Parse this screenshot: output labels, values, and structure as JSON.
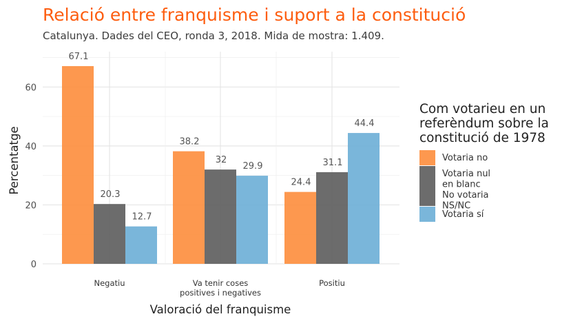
{
  "chart_data": {
    "type": "bar",
    "title": "Relació entre franquisme i suport a la constitució",
    "subtitle": "Catalunya. Dades del CEO, ronda 3, 2018. Mida de mostra: 1.409.",
    "xlabel": "Valoració del franquisme",
    "ylabel": "Percentatge",
    "ylim": [
      0,
      72
    ],
    "yticks": [
      0,
      20,
      40,
      60
    ],
    "grid": true,
    "categories": [
      "Negatiu",
      "Va tenir coses\npositives i negatives",
      "Positiu"
    ],
    "series": [
      {
        "name": "Votaria no",
        "values": [
          67.1,
          38.2,
          24.4
        ],
        "color": "#fd8d3c"
      },
      {
        "name": "Votaria nul\nen blanc\nNo votaria\nNS/NC",
        "values": [
          20.3,
          32,
          31.1
        ],
        "color": "#5c5c5c"
      },
      {
        "name": "Votaria sí",
        "values": [
          12.7,
          29.9,
          44.4
        ],
        "color": "#6baed6"
      }
    ],
    "legend": {
      "title": "Com votarieu en un\nreferèndum sobre la\nconstitució de 1978",
      "position": "right"
    },
    "colors": {
      "title": "#fd5d0f",
      "subtitle": "#3d3d3d",
      "grid": "#e6e6e6"
    }
  }
}
